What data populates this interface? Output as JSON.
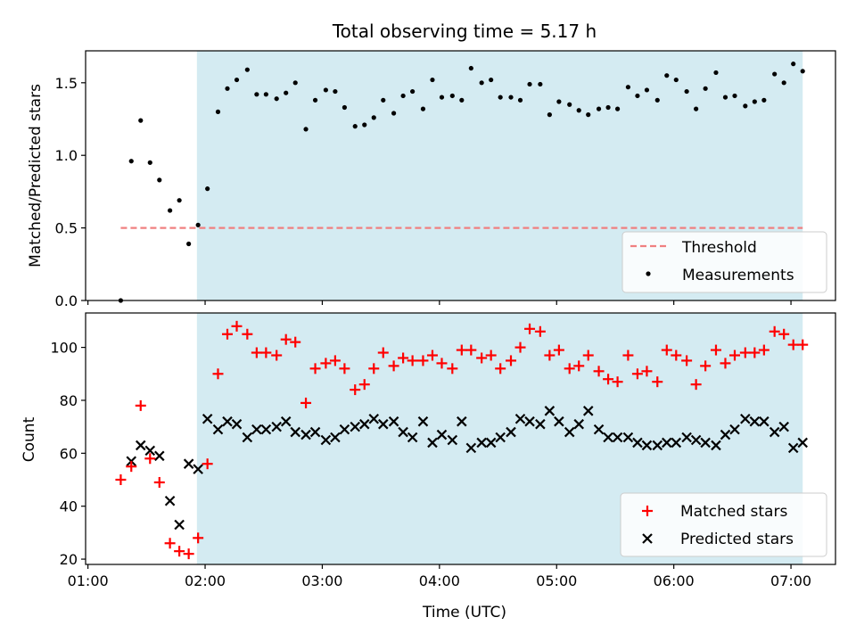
{
  "figure": {
    "title": "Total observing time = 5.17 h"
  },
  "colors": {
    "observing_band": "#add8e6",
    "threshold_line": "#f08080",
    "measurements": "#000000",
    "matched": "#ff0000",
    "predicted": "#000000"
  },
  "chart_data": [
    {
      "type": "scatter",
      "panel": "top",
      "xlabel": "",
      "ylabel": "Matched/Predicted stars",
      "xlim_hours": [
        0.98,
        7.38
      ],
      "ylim": [
        0,
        1.72
      ],
      "yticks": [
        0.0,
        0.5,
        1.0,
        1.5
      ],
      "ytick_labels": [
        "0.0",
        "0.5",
        "1.0",
        "1.5"
      ],
      "observing_window_hours": [
        1.93,
        7.1
      ],
      "threshold": {
        "value": 0.5,
        "x_range_hours": [
          1.28,
          7.1
        ],
        "style": "dashed"
      },
      "legend": {
        "placement": "lower-right",
        "entries": [
          "Threshold",
          "Measurements"
        ]
      },
      "series": [
        {
          "name": "Measurements",
          "marker": "dot",
          "x_hours": [
            1.28,
            1.37,
            1.45,
            1.53,
            1.61,
            1.7,
            1.78,
            1.86,
            1.94,
            2.02,
            2.11,
            2.19,
            2.27,
            2.36,
            2.44,
            2.52,
            2.61,
            2.69,
            2.77,
            2.86,
            2.94,
            3.03,
            3.11,
            3.19,
            3.28,
            3.36,
            3.44,
            3.52,
            3.61,
            3.69,
            3.77,
            3.86,
            3.94,
            4.02,
            4.11,
            4.19,
            4.27,
            4.36,
            4.44,
            4.52,
            4.61,
            4.69,
            4.77,
            4.86,
            4.94,
            5.02,
            5.11,
            5.19,
            5.27,
            5.36,
            5.44,
            5.52,
            5.61,
            5.69,
            5.77,
            5.86,
            5.94,
            6.02,
            6.11,
            6.19,
            6.27,
            6.36,
            6.44,
            6.52,
            6.61,
            6.69,
            6.77,
            6.86,
            6.94,
            7.02,
            7.1
          ],
          "y": [
            0.0,
            0.96,
            1.24,
            0.95,
            0.83,
            0.62,
            0.69,
            0.39,
            0.52,
            0.77,
            1.3,
            1.46,
            1.52,
            1.59,
            1.42,
            1.42,
            1.39,
            1.43,
            1.5,
            1.18,
            1.38,
            1.45,
            1.44,
            1.33,
            1.2,
            1.21,
            1.26,
            1.38,
            1.29,
            1.41,
            1.44,
            1.32,
            1.52,
            1.4,
            1.41,
            1.38,
            1.6,
            1.5,
            1.52,
            1.4,
            1.4,
            1.38,
            1.49,
            1.49,
            1.28,
            1.37,
            1.35,
            1.31,
            1.28,
            1.32,
            1.33,
            1.32,
            1.47,
            1.41,
            1.45,
            1.38,
            1.55,
            1.52,
            1.44,
            1.32,
            1.46,
            1.57,
            1.4,
            1.41,
            1.34,
            1.37,
            1.38,
            1.56,
            1.5,
            1.63,
            1.58
          ]
        }
      ]
    },
    {
      "type": "scatter",
      "panel": "bottom",
      "xlabel": "Time (UTC)",
      "ylabel": "Count",
      "xlim_hours": [
        0.98,
        7.38
      ],
      "ylim": [
        18,
        113
      ],
      "yticks": [
        20,
        40,
        60,
        80,
        100
      ],
      "ytick_labels": [
        "20",
        "40",
        "60",
        "80",
        "100"
      ],
      "xticks_hours": [
        1,
        2,
        3,
        4,
        5,
        6,
        7
      ],
      "xtick_labels": [
        "01:00",
        "02:00",
        "03:00",
        "04:00",
        "05:00",
        "06:00",
        "07:00"
      ],
      "observing_window_hours": [
        1.93,
        7.1
      ],
      "legend": {
        "placement": "lower-right",
        "entries": [
          "Matched stars",
          "Predicted stars"
        ]
      },
      "series": [
        {
          "name": "Matched stars",
          "marker": "plus",
          "x_hours": [
            1.28,
            1.37,
            1.45,
            1.53,
            1.61,
            1.7,
            1.78,
            1.86,
            1.94,
            2.02,
            2.11,
            2.19,
            2.27,
            2.36,
            2.44,
            2.52,
            2.61,
            2.69,
            2.77,
            2.86,
            2.94,
            3.03,
            3.11,
            3.19,
            3.28,
            3.36,
            3.44,
            3.52,
            3.61,
            3.69,
            3.77,
            3.86,
            3.94,
            4.02,
            4.11,
            4.19,
            4.27,
            4.36,
            4.44,
            4.52,
            4.61,
            4.69,
            4.77,
            4.86,
            4.94,
            5.02,
            5.11,
            5.19,
            5.27,
            5.36,
            5.44,
            5.52,
            5.61,
            5.69,
            5.77,
            5.86,
            5.94,
            6.02,
            6.11,
            6.19,
            6.27,
            6.36,
            6.44,
            6.52,
            6.61,
            6.69,
            6.77,
            6.86,
            6.94,
            7.02,
            7.1
          ],
          "y": [
            50,
            55,
            78,
            58,
            49,
            26,
            23,
            22,
            28,
            56,
            90,
            105,
            108,
            105,
            98,
            98,
            97,
            103,
            102,
            79,
            92,
            94,
            95,
            92,
            84,
            86,
            92,
            98,
            93,
            96,
            95,
            95,
            97,
            94,
            92,
            99,
            99,
            96,
            97,
            92,
            95,
            100,
            107,
            106,
            97,
            99,
            92,
            93,
            97,
            91,
            88,
            87,
            97,
            90,
            91,
            87,
            99,
            97,
            95,
            86,
            93,
            99,
            94,
            97,
            98,
            98,
            99,
            106,
            105,
            101,
            101
          ]
        },
        {
          "name": "Predicted stars",
          "marker": "x",
          "x_hours": [
            1.37,
            1.45,
            1.53,
            1.61,
            1.7,
            1.78,
            1.86,
            1.94,
            2.02,
            2.11,
            2.19,
            2.27,
            2.36,
            2.44,
            2.52,
            2.61,
            2.69,
            2.77,
            2.86,
            2.94,
            3.03,
            3.11,
            3.19,
            3.28,
            3.36,
            3.44,
            3.52,
            3.61,
            3.69,
            3.77,
            3.86,
            3.94,
            4.02,
            4.11,
            4.19,
            4.27,
            4.36,
            4.44,
            4.52,
            4.61,
            4.69,
            4.77,
            4.86,
            4.94,
            5.02,
            5.11,
            5.19,
            5.27,
            5.36,
            5.44,
            5.52,
            5.61,
            5.69,
            5.77,
            5.86,
            5.94,
            6.02,
            6.11,
            6.19,
            6.27,
            6.36,
            6.44,
            6.52,
            6.61,
            6.69,
            6.77,
            6.86,
            6.94,
            7.02,
            7.1
          ],
          "y": [
            57,
            63,
            61,
            59,
            42,
            33,
            56,
            54,
            73,
            69,
            72,
            71,
            66,
            69,
            69,
            70,
            72,
            68,
            67,
            68,
            65,
            66,
            69,
            70,
            71,
            73,
            71,
            72,
            68,
            66,
            72,
            64,
            67,
            65,
            72,
            62,
            64,
            64,
            66,
            68,
            73,
            72,
            71,
            76,
            72,
            68,
            71,
            76,
            69,
            66,
            66,
            66,
            64,
            63,
            63,
            64,
            64,
            66,
            65,
            64,
            63,
            67,
            69,
            73,
            72,
            72,
            68,
            70,
            62,
            64
          ]
        }
      ]
    }
  ]
}
